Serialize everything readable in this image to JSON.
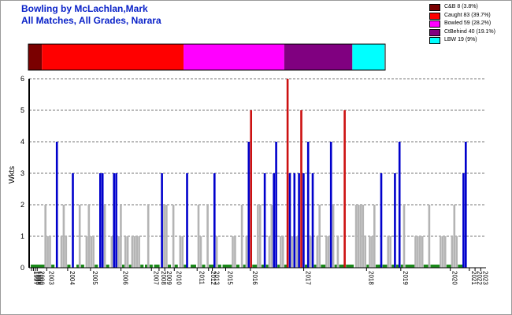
{
  "title_line1": "Bowling by McLachlan,Mark",
  "title_line2": "All Matches, All Grades, Narara",
  "legend": [
    {
      "label": "C&B 8 (3.8%)",
      "color": "#7a0000"
    },
    {
      "label": "Caught 83 (39.7%)",
      "color": "#ff0000"
    },
    {
      "label": "Bowled 59 (28.2%)",
      "color": "#ff00ff"
    },
    {
      "label": "CtBehind 40 (19.1%)",
      "color": "#800080"
    },
    {
      "label": "LBW 19 (9%)",
      "color": "#00ffff"
    }
  ],
  "chart_data": {
    "type": "bar",
    "ylabel": "Wkts",
    "ylim": [
      0,
      6
    ],
    "yticks": [
      "0",
      "1",
      "2",
      "3",
      "4",
      "5",
      "6"
    ],
    "grid": "horizontal dashed",
    "dismissal_strip": [
      {
        "name": "C&B",
        "percent": 3.8,
        "color": "#7a0000"
      },
      {
        "name": "Caught",
        "percent": 39.7,
        "color": "#ff0000"
      },
      {
        "name": "Bowled",
        "percent": 28.2,
        "color": "#ff00ff"
      },
      {
        "name": "CtBehind",
        "percent": 19.1,
        "color": "#800080"
      },
      {
        "name": "LBW",
        "percent": 9.0,
        "color": "#00ffff"
      }
    ],
    "season_labels": [
      "1997",
      "1998",
      "1999",
      "2000",
      "2003",
      "2004",
      "2005",
      "2006",
      "2007",
      "2008",
      "2009",
      "2010",
      "2011",
      "2012",
      "2013",
      "2015",
      "2016",
      "2017",
      "2018",
      "2019",
      "2020",
      "2021",
      "2022",
      "2023"
    ],
    "season_label_index": [
      0,
      1,
      2,
      3,
      8,
      19,
      31,
      47,
      63,
      67,
      70,
      75,
      87,
      93,
      95,
      102,
      115,
      143,
      176,
      194,
      220,
      230,
      233,
      236
    ],
    "bar_colors": {
      "blue": "#0000cc",
      "grey": "#b4b4b4",
      "red": "#cc1111",
      "green": "#1a8a1a"
    },
    "bars": [
      {
        "x": 0,
        "w": 1,
        "c": "green"
      },
      {
        "x": 1,
        "w": 1,
        "c": "green"
      },
      {
        "x": 2,
        "w": 1,
        "c": "green"
      },
      {
        "x": 3,
        "w": 1,
        "c": "green"
      },
      {
        "x": 4,
        "w": 1,
        "c": "green"
      },
      {
        "x": 5,
        "w": 1,
        "c": "green"
      },
      {
        "x": 6,
        "w": 2,
        "c": "grey"
      },
      {
        "x": 7,
        "w": 1,
        "c": "grey"
      },
      {
        "x": 8,
        "w": 1,
        "c": "grey"
      },
      {
        "x": 9,
        "w": 1,
        "c": "green"
      },
      {
        "x": 11,
        "w": 4,
        "c": "blue"
      },
      {
        "x": 13,
        "w": 1,
        "c": "grey"
      },
      {
        "x": 14,
        "w": 2,
        "c": "grey"
      },
      {
        "x": 15,
        "w": 1,
        "c": "grey"
      },
      {
        "x": 16,
        "w": 1,
        "c": "green"
      },
      {
        "x": 18,
        "w": 3,
        "c": "blue"
      },
      {
        "x": 20,
        "w": 1,
        "c": "green"
      },
      {
        "x": 21,
        "w": 2,
        "c": "grey"
      },
      {
        "x": 22,
        "w": 1,
        "c": "green"
      },
      {
        "x": 24,
        "w": 1,
        "c": "grey"
      },
      {
        "x": 25,
        "w": 2,
        "c": "grey"
      },
      {
        "x": 26,
        "w": 1,
        "c": "grey"
      },
      {
        "x": 27,
        "w": 1,
        "c": "grey"
      },
      {
        "x": 28,
        "w": 1,
        "c": "green"
      },
      {
        "x": 30,
        "w": 3,
        "c": "blue"
      },
      {
        "x": 31,
        "w": 3,
        "c": "blue"
      },
      {
        "x": 32,
        "w": 2,
        "c": "grey"
      },
      {
        "x": 33,
        "w": 1,
        "c": "green"
      },
      {
        "x": 35,
        "w": 1,
        "c": "grey"
      },
      {
        "x": 36,
        "w": 3,
        "c": "blue"
      },
      {
        "x": 37,
        "w": 3,
        "c": "blue"
      },
      {
        "x": 38,
        "w": 1,
        "c": "grey"
      },
      {
        "x": 39,
        "w": 2,
        "c": "grey"
      },
      {
        "x": 40,
        "w": 1,
        "c": "green"
      },
      {
        "x": 41,
        "w": 1,
        "c": "grey"
      },
      {
        "x": 42,
        "w": 1,
        "c": "grey"
      },
      {
        "x": 43,
        "w": 1,
        "c": "green"
      },
      {
        "x": 44,
        "w": 1,
        "c": "grey"
      },
      {
        "x": 45,
        "w": 1,
        "c": "grey"
      },
      {
        "x": 46,
        "w": 1,
        "c": "grey"
      },
      {
        "x": 47,
        "w": 1,
        "c": "grey"
      },
      {
        "x": 48,
        "w": 1,
        "c": "green"
      },
      {
        "x": 50,
        "w": 1,
        "c": "green"
      },
      {
        "x": 51,
        "w": 2,
        "c": "grey"
      },
      {
        "x": 52,
        "w": 1,
        "c": "green"
      },
      {
        "x": 54,
        "w": 1,
        "c": "green"
      },
      {
        "x": 55,
        "w": 1,
        "c": "green"
      },
      {
        "x": 57,
        "w": 3,
        "c": "blue"
      },
      {
        "x": 58,
        "w": 2,
        "c": "grey"
      },
      {
        "x": 59,
        "w": 2,
        "c": "grey"
      },
      {
        "x": 60,
        "w": 1,
        "c": "green"
      },
      {
        "x": 62,
        "w": 2,
        "c": "grey"
      },
      {
        "x": 63,
        "w": 1,
        "c": "green"
      },
      {
        "x": 65,
        "w": 1,
        "c": "grey"
      },
      {
        "x": 66,
        "w": 1,
        "c": "grey"
      },
      {
        "x": 67,
        "w": 1,
        "c": "green"
      },
      {
        "x": 68,
        "w": 3,
        "c": "blue"
      },
      {
        "x": 70,
        "w": 1,
        "c": "green"
      },
      {
        "x": 71,
        "w": 1,
        "c": "green"
      },
      {
        "x": 73,
        "w": 2,
        "c": "grey"
      },
      {
        "x": 74,
        "w": 1,
        "c": "grey"
      },
      {
        "x": 75,
        "w": 1,
        "c": "green"
      },
      {
        "x": 77,
        "w": 2,
        "c": "grey"
      },
      {
        "x": 78,
        "w": 1,
        "c": "green"
      },
      {
        "x": 79,
        "w": 1,
        "c": "green"
      },
      {
        "x": 80,
        "w": 3,
        "c": "blue"
      },
      {
        "x": 81,
        "w": 1,
        "c": "grey"
      },
      {
        "x": 82,
        "w": 1,
        "c": "green"
      },
      {
        "x": 84,
        "w": 1,
        "c": "green"
      },
      {
        "x": 85,
        "w": 1,
        "c": "green"
      },
      {
        "x": 86,
        "w": 1,
        "c": "green"
      },
      {
        "x": 87,
        "w": 1,
        "c": "green"
      },
      {
        "x": 88,
        "w": 1,
        "c": "grey"
      },
      {
        "x": 89,
        "w": 1,
        "c": "grey"
      },
      {
        "x": 90,
        "w": 1,
        "c": "green"
      },
      {
        "x": 92,
        "w": 2,
        "c": "grey"
      },
      {
        "x": 93,
        "w": 1,
        "c": "green"
      },
      {
        "x": 94,
        "w": 1,
        "c": "grey"
      },
      {
        "x": 95,
        "w": 4,
        "c": "blue"
      },
      {
        "x": 96,
        "w": 5,
        "c": "red"
      },
      {
        "x": 97,
        "w": 1,
        "c": "green"
      },
      {
        "x": 98,
        "w": 1,
        "c": "green"
      },
      {
        "x": 99,
        "w": 2,
        "c": "grey"
      },
      {
        "x": 100,
        "w": 2,
        "c": "grey"
      },
      {
        "x": 101,
        "w": 1,
        "c": "green"
      },
      {
        "x": 102,
        "w": 3,
        "c": "blue"
      },
      {
        "x": 103,
        "w": 1,
        "c": "green"
      },
      {
        "x": 104,
        "w": 1,
        "c": "grey"
      },
      {
        "x": 105,
        "w": 2,
        "c": "grey"
      },
      {
        "x": 106,
        "w": 3,
        "c": "blue"
      },
      {
        "x": 107,
        "w": 4,
        "c": "blue"
      },
      {
        "x": 108,
        "w": 1,
        "c": "green"
      },
      {
        "x": 109,
        "w": 1,
        "c": "grey"
      },
      {
        "x": 110,
        "w": 1,
        "c": "grey"
      },
      {
        "x": 111,
        "w": 1,
        "c": "green"
      },
      {
        "x": 112,
        "w": 6,
        "c": "red"
      },
      {
        "x": 113,
        "w": 3,
        "c": "blue"
      },
      {
        "x": 114,
        "w": 1,
        "c": "grey"
      },
      {
        "x": 115,
        "w": 3,
        "c": "blue"
      },
      {
        "x": 116,
        "w": 1,
        "c": "grey"
      },
      {
        "x": 117,
        "w": 3,
        "c": "blue"
      },
      {
        "x": 118,
        "w": 5,
        "c": "red"
      },
      {
        "x": 119,
        "w": 3,
        "c": "blue"
      },
      {
        "x": 120,
        "w": 1,
        "c": "green"
      },
      {
        "x": 121,
        "w": 4,
        "c": "blue"
      },
      {
        "x": 122,
        "w": 1,
        "c": "grey"
      },
      {
        "x": 123,
        "w": 3,
        "c": "blue"
      },
      {
        "x": 124,
        "w": 1,
        "c": "green"
      },
      {
        "x": 125,
        "w": 1,
        "c": "grey"
      },
      {
        "x": 126,
        "w": 2,
        "c": "grey"
      },
      {
        "x": 127,
        "w": 1,
        "c": "green"
      },
      {
        "x": 128,
        "w": 1,
        "c": "green"
      },
      {
        "x": 129,
        "w": 1,
        "c": "grey"
      },
      {
        "x": 130,
        "w": 1,
        "c": "grey"
      },
      {
        "x": 131,
        "w": 4,
        "c": "blue"
      },
      {
        "x": 132,
        "w": 2,
        "c": "grey"
      },
      {
        "x": 133,
        "w": 1,
        "c": "green"
      },
      {
        "x": 134,
        "w": 1,
        "c": "grey"
      },
      {
        "x": 135,
        "w": 1,
        "c": "green"
      },
      {
        "x": 136,
        "w": 1,
        "c": "green"
      },
      {
        "x": 137,
        "w": 5,
        "c": "red"
      },
      {
        "x": 138,
        "w": 1,
        "c": "green"
      },
      {
        "x": 139,
        "w": 1,
        "c": "green"
      },
      {
        "x": 140,
        "w": 1,
        "c": "green"
      },
      {
        "x": 142,
        "w": 2,
        "c": "grey"
      },
      {
        "x": 143,
        "w": 2,
        "c": "grey"
      },
      {
        "x": 144,
        "w": 2,
        "c": "grey"
      },
      {
        "x": 145,
        "w": 2,
        "c": "grey"
      },
      {
        "x": 146,
        "w": 1,
        "c": "grey"
      },
      {
        "x": 147,
        "w": 1,
        "c": "green"
      },
      {
        "x": 148,
        "w": 1,
        "c": "grey"
      },
      {
        "x": 149,
        "w": 1,
        "c": "grey"
      },
      {
        "x": 150,
        "w": 2,
        "c": "grey"
      },
      {
        "x": 151,
        "w": 1,
        "c": "green"
      },
      {
        "x": 152,
        "w": 1,
        "c": "green"
      },
      {
        "x": 153,
        "w": 3,
        "c": "blue"
      },
      {
        "x": 154,
        "w": 1,
        "c": "green"
      },
      {
        "x": 155,
        "w": 1,
        "c": "green"
      },
      {
        "x": 156,
        "w": 1,
        "c": "grey"
      },
      {
        "x": 157,
        "w": 1,
        "c": "grey"
      },
      {
        "x": 158,
        "w": 1,
        "c": "green"
      },
      {
        "x": 159,
        "w": 3,
        "c": "blue"
      },
      {
        "x": 160,
        "w": 1,
        "c": "green"
      },
      {
        "x": 161,
        "w": 4,
        "c": "blue"
      },
      {
        "x": 162,
        "w": 1,
        "c": "green"
      },
      {
        "x": 163,
        "w": 2,
        "c": "grey"
      },
      {
        "x": 164,
        "w": 1,
        "c": "green"
      },
      {
        "x": 165,
        "w": 1,
        "c": "green"
      },
      {
        "x": 166,
        "w": 1,
        "c": "green"
      },
      {
        "x": 167,
        "w": 1,
        "c": "green"
      },
      {
        "x": 168,
        "w": 1,
        "c": "grey"
      },
      {
        "x": 169,
        "w": 1,
        "c": "grey"
      },
      {
        "x": 170,
        "w": 1,
        "c": "grey"
      },
      {
        "x": 171,
        "w": 1,
        "c": "grey"
      },
      {
        "x": 172,
        "w": 1,
        "c": "green"
      },
      {
        "x": 173,
        "w": 1,
        "c": "green"
      },
      {
        "x": 174,
        "w": 2,
        "c": "grey"
      },
      {
        "x": 175,
        "w": 1,
        "c": "green"
      },
      {
        "x": 176,
        "w": 1,
        "c": "green"
      },
      {
        "x": 177,
        "w": 1,
        "c": "green"
      },
      {
        "x": 178,
        "w": 1,
        "c": "green"
      },
      {
        "x": 179,
        "w": 1,
        "c": "grey"
      },
      {
        "x": 180,
        "w": 1,
        "c": "grey"
      },
      {
        "x": 181,
        "w": 1,
        "c": "grey"
      },
      {
        "x": 182,
        "w": 1,
        "c": "green"
      },
      {
        "x": 183,
        "w": 1,
        "c": "green"
      },
      {
        "x": 184,
        "w": 1,
        "c": "grey"
      },
      {
        "x": 185,
        "w": 2,
        "c": "grey"
      },
      {
        "x": 186,
        "w": 1,
        "c": "grey"
      },
      {
        "x": 187,
        "w": 1,
        "c": "green"
      },
      {
        "x": 188,
        "w": 1,
        "c": "green"
      },
      {
        "x": 189,
        "w": 3,
        "c": "blue"
      },
      {
        "x": 190,
        "w": 4,
        "c": "blue"
      }
    ]
  }
}
